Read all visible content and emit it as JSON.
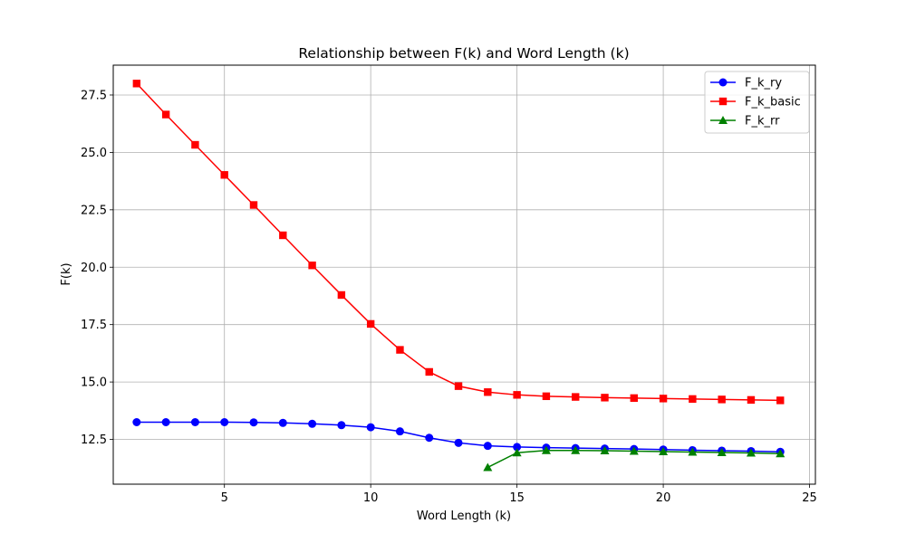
{
  "chart_data": {
    "type": "line",
    "title": "Relationship between F(k) and Word Length (k)",
    "xlabel": "Word Length (k)",
    "ylabel": "F(k)",
    "xlim": [
      1.2,
      25.2
    ],
    "ylim": [
      10.55,
      28.8
    ],
    "xticks": [
      5,
      10,
      15,
      20,
      25
    ],
    "yticks": [
      12.5,
      15.0,
      17.5,
      20.0,
      22.5,
      25.0,
      27.5
    ],
    "grid": true,
    "legend_position": "top-right",
    "series": [
      {
        "name": "F_k_ry",
        "color": "#0000ff",
        "marker": "circle",
        "x": [
          2,
          3,
          4,
          5,
          6,
          7,
          8,
          9,
          10,
          11,
          12,
          13,
          14,
          15,
          16,
          17,
          18,
          19,
          20,
          21,
          22,
          23,
          24
        ],
        "y": [
          13.25,
          13.25,
          13.25,
          13.25,
          13.24,
          13.22,
          13.18,
          13.12,
          13.03,
          12.85,
          12.57,
          12.35,
          12.22,
          12.17,
          12.14,
          12.12,
          12.1,
          12.08,
          12.06,
          12.03,
          12.01,
          11.99,
          11.96
        ]
      },
      {
        "name": "F_k_basic",
        "color": "#ff0000",
        "marker": "square",
        "x": [
          2,
          3,
          4,
          5,
          6,
          7,
          8,
          9,
          10,
          11,
          12,
          13,
          14,
          15,
          16,
          17,
          18,
          19,
          20,
          21,
          22,
          23,
          24
        ],
        "y": [
          28.0,
          26.65,
          25.33,
          24.02,
          22.71,
          21.39,
          20.08,
          18.79,
          17.53,
          16.4,
          15.44,
          14.82,
          14.56,
          14.44,
          14.38,
          14.35,
          14.32,
          14.3,
          14.28,
          14.26,
          14.24,
          14.22,
          14.2
        ]
      },
      {
        "name": "F_k_rr",
        "color": "#008000",
        "marker": "triangle",
        "x": [
          14,
          15,
          16,
          17,
          18,
          19,
          20,
          21,
          22,
          23,
          24
        ],
        "y": [
          11.28,
          11.92,
          12.02,
          12.02,
          12.01,
          11.99,
          11.97,
          11.95,
          11.93,
          11.91,
          11.88
        ]
      }
    ]
  }
}
